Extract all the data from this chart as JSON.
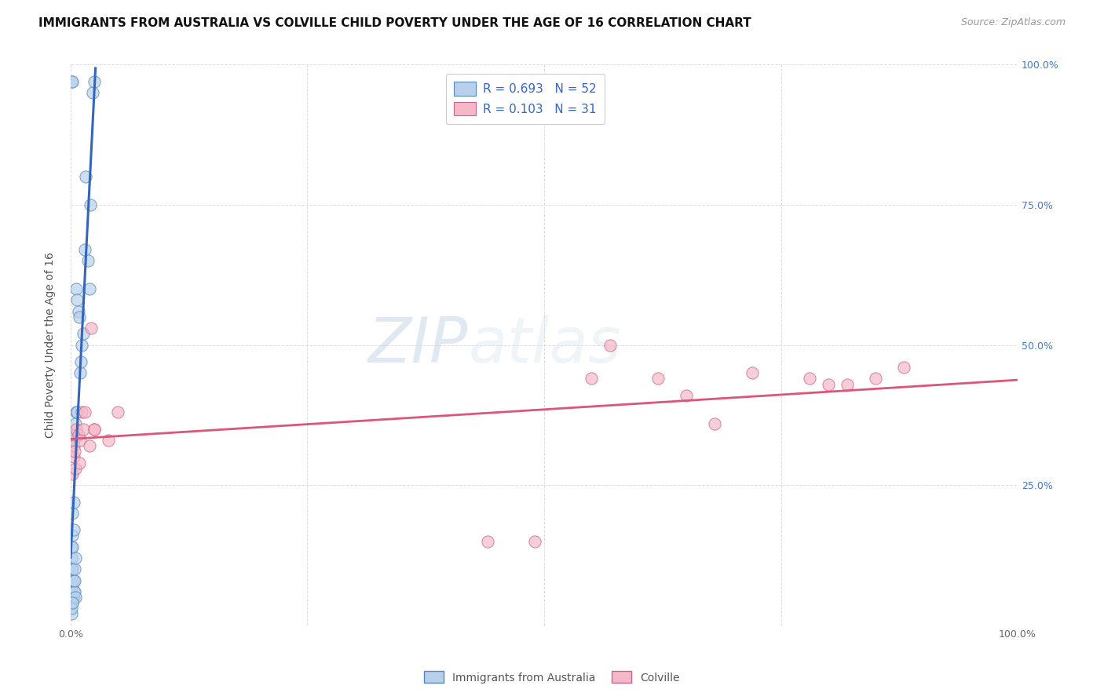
{
  "title": "IMMIGRANTS FROM AUSTRALIA VS COLVILLE CHILD POVERTY UNDER THE AGE OF 16 CORRELATION CHART",
  "source": "Source: ZipAtlas.com",
  "ylabel": "Child Poverty Under the Age of 16",
  "xlim": [
    0,
    1.0
  ],
  "ylim": [
    0,
    1.0
  ],
  "xtick_positions": [
    0.0,
    0.25,
    0.5,
    0.75,
    1.0
  ],
  "xticklabels": [
    "0.0%",
    "",
    "",
    "",
    "100.0%"
  ],
  "ytick_positions": [
    0.0,
    0.25,
    0.5,
    0.75,
    1.0
  ],
  "ytick_labels_right": [
    "",
    "25.0%",
    "50.0%",
    "75.0%",
    "100.0%"
  ],
  "watermark_zip": "ZIP",
  "watermark_atlas": "atlas",
  "legend_series1_label": "R = 0.693   N = 52",
  "legend_series2_label": "R = 0.103   N = 31",
  "bottom_label1": "Immigrants from Australia",
  "bottom_label2": "Colville",
  "series1_color": "#b8d0ea",
  "series1_edge": "#5588bb",
  "series2_color": "#f5b8c8",
  "series2_edge": "#cc6688",
  "trendline1_color": "#3366bb",
  "trendline2_color": "#dd5577",
  "blue_x": [
    0.001,
    0.001,
    0.001,
    0.001,
    0.001,
    0.001,
    0.001,
    0.001,
    0.002,
    0.002,
    0.002,
    0.002,
    0.002,
    0.002,
    0.002,
    0.002,
    0.003,
    0.003,
    0.003,
    0.003,
    0.003,
    0.004,
    0.004,
    0.004,
    0.004,
    0.005,
    0.005,
    0.005,
    0.006,
    0.006,
    0.007,
    0.007,
    0.008,
    0.009,
    0.01,
    0.011,
    0.012,
    0.013,
    0.015,
    0.016,
    0.018,
    0.02,
    0.021,
    0.023,
    0.025,
    0.001,
    0.001,
    0.002,
    0.002,
    0.003,
    0.001,
    0.002
  ],
  "blue_y": [
    0.05,
    0.06,
    0.07,
    0.08,
    0.1,
    0.12,
    0.14,
    0.33,
    0.04,
    0.05,
    0.07,
    0.08,
    0.1,
    0.14,
    0.2,
    0.33,
    0.05,
    0.06,
    0.08,
    0.22,
    0.33,
    0.06,
    0.08,
    0.1,
    0.34,
    0.05,
    0.12,
    0.36,
    0.38,
    0.6,
    0.38,
    0.58,
    0.56,
    0.55,
    0.45,
    0.47,
    0.5,
    0.52,
    0.67,
    0.8,
    0.65,
    0.6,
    0.75,
    0.95,
    0.97,
    0.02,
    0.03,
    0.04,
    0.16,
    0.17,
    0.97,
    0.97
  ],
  "pink_x": [
    0.002,
    0.003,
    0.003,
    0.004,
    0.005,
    0.006,
    0.008,
    0.009,
    0.01,
    0.012,
    0.013,
    0.015,
    0.02,
    0.022,
    0.025,
    0.025,
    0.04,
    0.05,
    0.44,
    0.49,
    0.55,
    0.57,
    0.62,
    0.65,
    0.68,
    0.72,
    0.78,
    0.8,
    0.82,
    0.85,
    0.88
  ],
  "pink_y": [
    0.27,
    0.3,
    0.32,
    0.31,
    0.28,
    0.35,
    0.34,
    0.29,
    0.33,
    0.38,
    0.35,
    0.38,
    0.32,
    0.53,
    0.35,
    0.35,
    0.33,
    0.38,
    0.15,
    0.15,
    0.44,
    0.5,
    0.44,
    0.41,
    0.36,
    0.45,
    0.44,
    0.43,
    0.43,
    0.44,
    0.46
  ],
  "background_color": "#ffffff",
  "grid_color": "#dddddd",
  "title_fontsize": 11,
  "source_fontsize": 9,
  "label_fontsize": 10,
  "tick_fontsize": 9,
  "legend_fontsize": 11
}
